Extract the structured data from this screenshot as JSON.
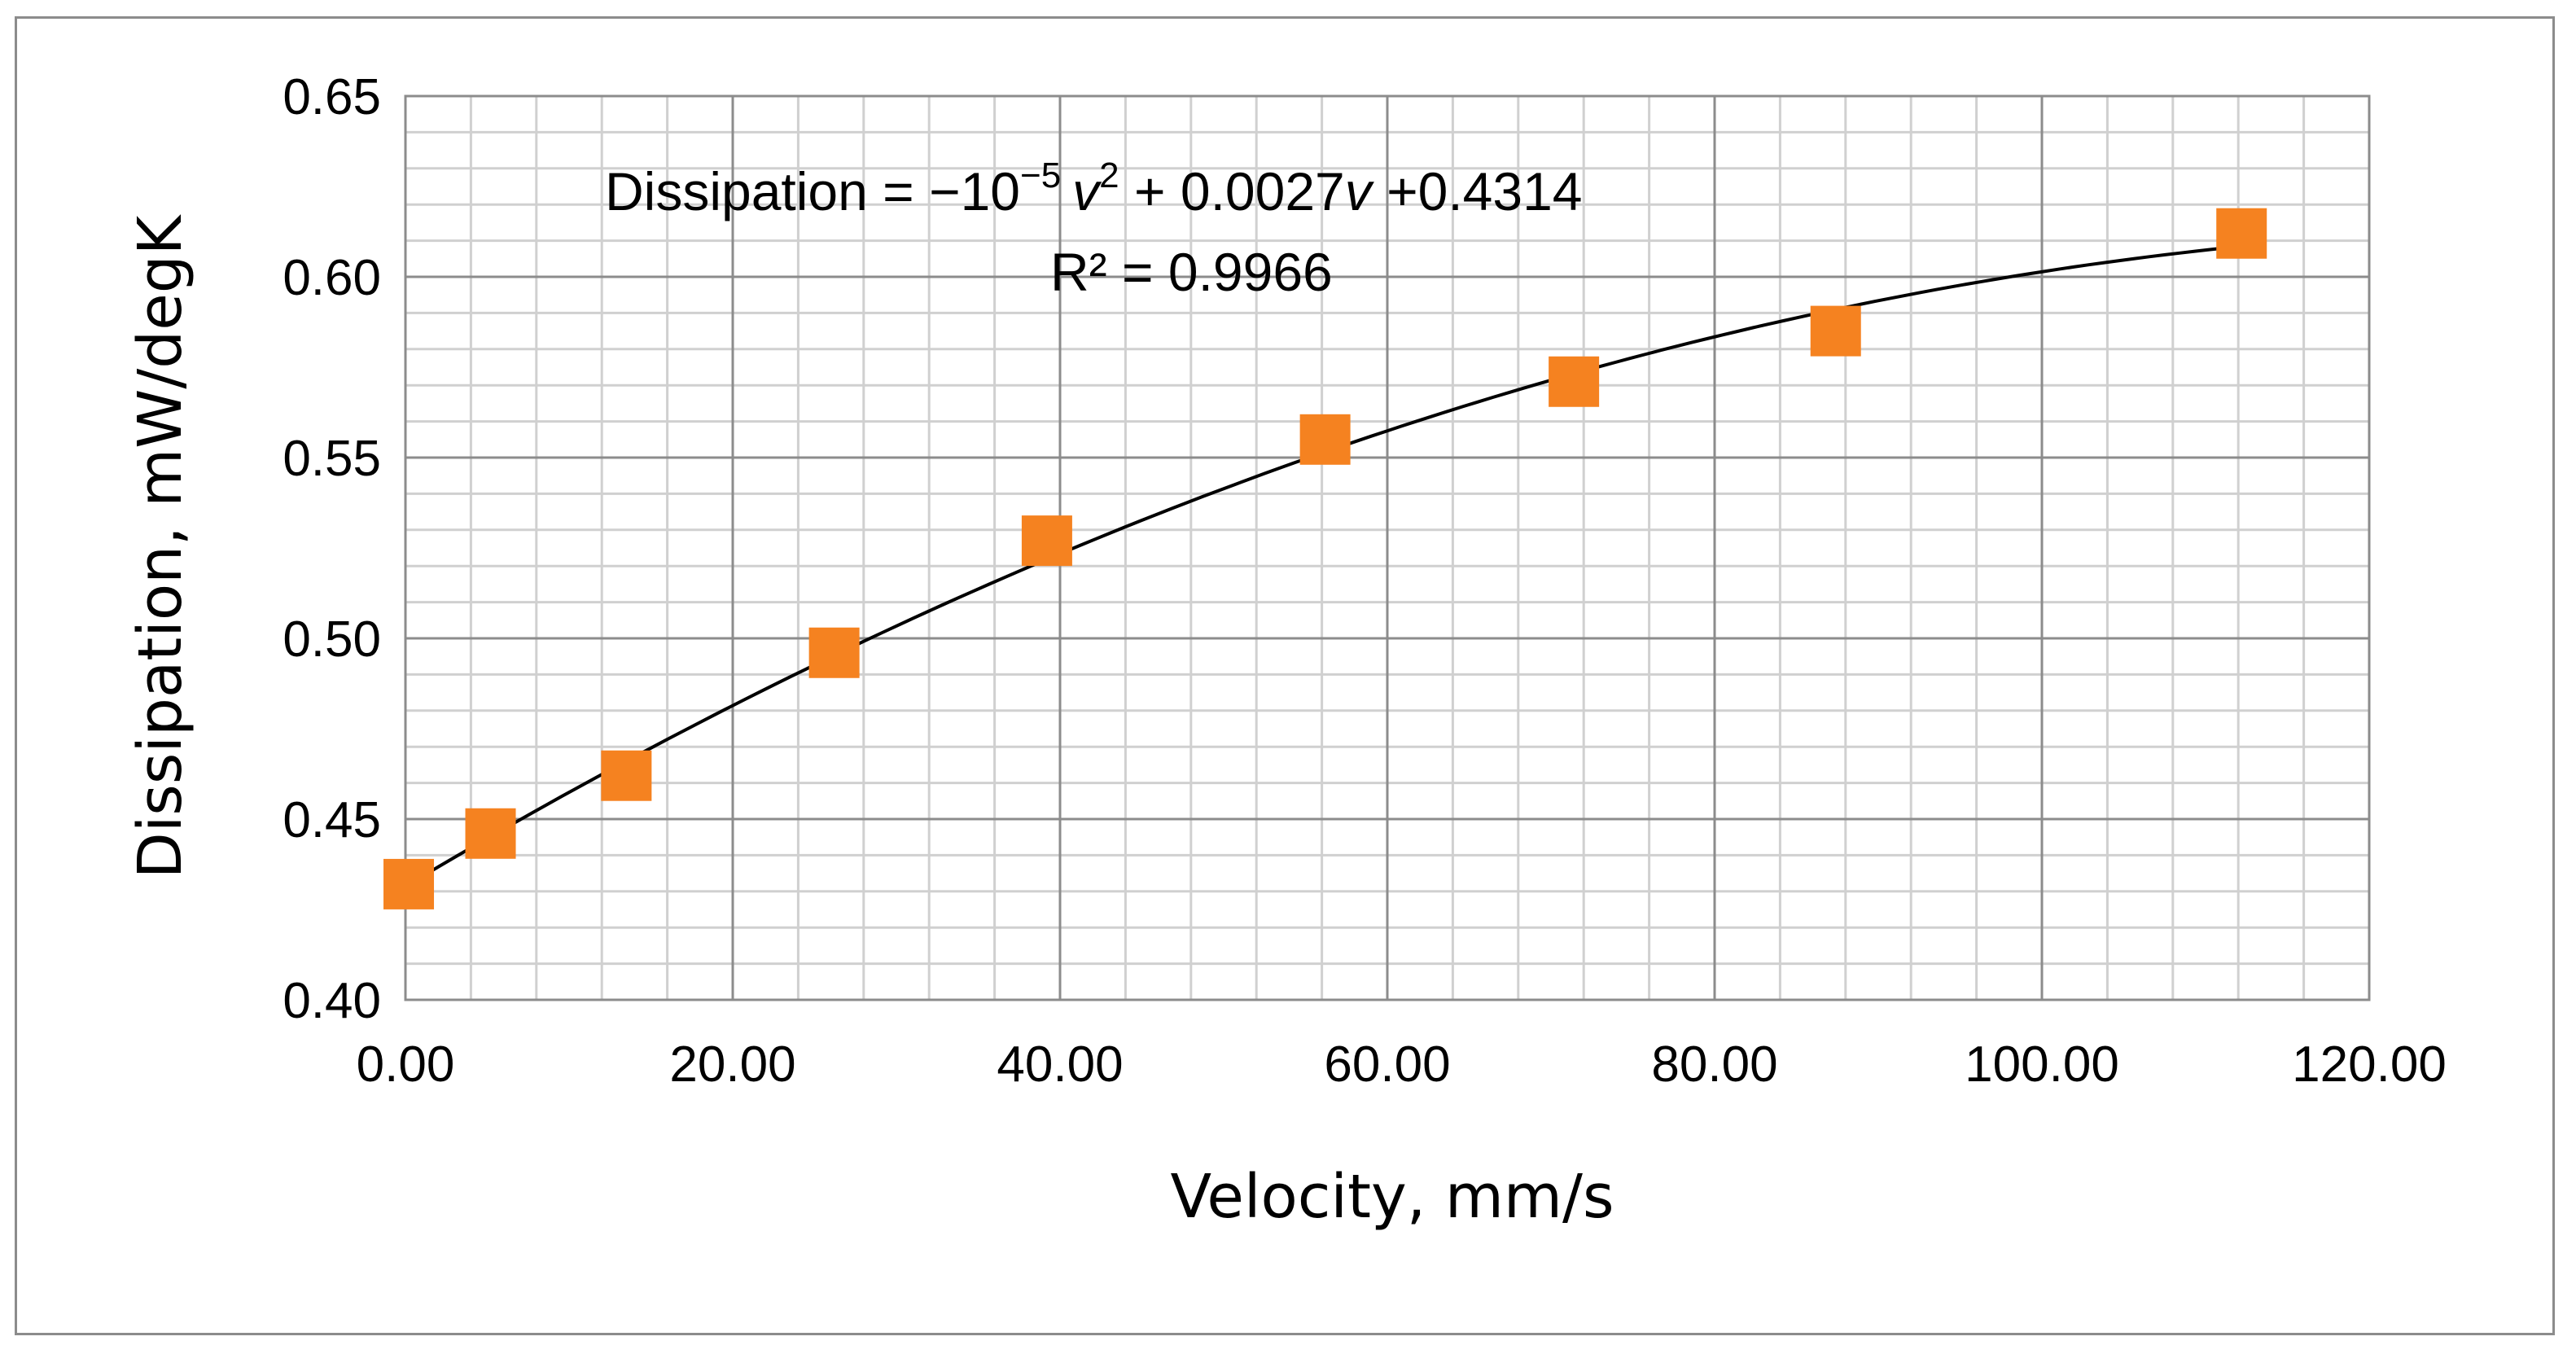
{
  "chart_data": {
    "type": "scatter",
    "xlabel": "Velocity, mm/s",
    "ylabel": "Dissipation, mW/degK",
    "xlim": [
      0,
      120
    ],
    "ylim": [
      0.4,
      0.65
    ],
    "x_ticks": [
      "0.00",
      "20.00",
      "40.00",
      "60.00",
      "80.00",
      "100.00",
      "120.00"
    ],
    "y_ticks": [
      "0.40",
      "0.45",
      "0.50",
      "0.55",
      "0.60",
      "0.65"
    ],
    "x_tick_values": [
      0,
      20,
      40,
      60,
      80,
      100,
      120
    ],
    "y_tick_values": [
      0.4,
      0.45,
      0.5,
      0.55,
      0.6,
      0.65
    ],
    "grid": true,
    "series": [
      {
        "name": "Dissipation",
        "marker": "square",
        "color": "#f58220",
        "x": [
          0.2,
          5.2,
          13.5,
          26.2,
          39.2,
          56.2,
          71.4,
          87.4,
          112.2
        ],
        "y": [
          0.432,
          0.446,
          0.462,
          0.496,
          0.527,
          0.555,
          0.571,
          0.585,
          0.612
        ]
      }
    ],
    "trendline": {
      "type": "polynomial",
      "color": "#000000",
      "coefficients": [
        0.4314,
        0.0027,
        -1e-05
      ],
      "x_range": [
        0.2,
        112.2
      ],
      "equation_prefix": "Dissipation = −10",
      "equation_exponent": "−5",
      "equation_var1": "v",
      "equation_sup": "2",
      "equation_mid": " + 0.0027",
      "equation_var2": "v",
      "equation_suffix": " +0.4314",
      "r_squared_label": "R² = 0.9966"
    }
  }
}
